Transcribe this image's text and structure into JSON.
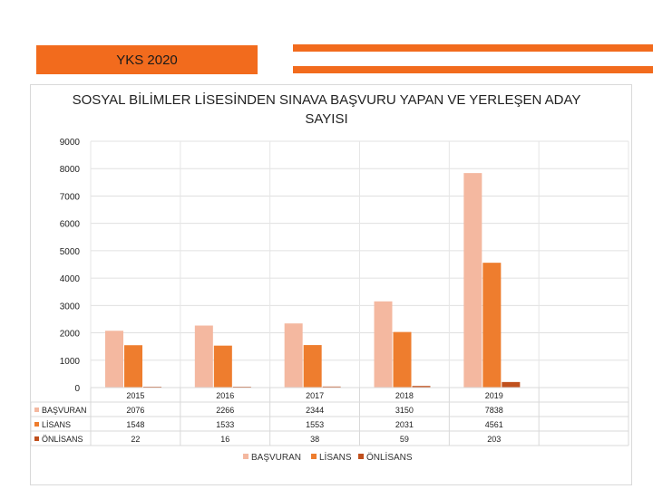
{
  "slide": {
    "banner_text": "YKS 2020",
    "accent_color": "#f26b1d"
  },
  "chart_data": {
    "type": "bar",
    "title": "SOSYAL BİLİMLER LİSESİNDEN SINAVA BAŞVURU YAPAN VE YERLEŞEN  ADAY SAYISI",
    "categories": [
      "2015",
      "2016",
      "2017",
      "2018",
      "2019"
    ],
    "series": [
      {
        "name": "BAŞVURAN",
        "values": [
          2076,
          2266,
          2344,
          3150,
          7838
        ],
        "color": "#f4b8a0"
      },
      {
        "name": "LİSANS",
        "values": [
          1548,
          1533,
          1553,
          2031,
          4561
        ],
        "color": "#ee7d2e"
      },
      {
        "name": "ÖNLİSANS",
        "values": [
          22,
          16,
          38,
          59,
          203
        ],
        "color": "#c0501d"
      }
    ],
    "ylim": [
      0,
      9000
    ],
    "yticks": [
      "0",
      "1000",
      "2000",
      "3000",
      "4000",
      "5000",
      "6000",
      "7000",
      "8000",
      "9000"
    ],
    "table_rows": [
      {
        "label": "BAŞVURAN",
        "cells": [
          "2076",
          "2266",
          "2344",
          "3150",
          "7838"
        ]
      },
      {
        "label": "LİSANS",
        "cells": [
          "1548",
          "1533",
          "1553",
          "2031",
          "4561"
        ]
      },
      {
        "label": "ÖNLİSANS",
        "cells": [
          "22",
          "16",
          "38",
          "59",
          "203"
        ]
      }
    ],
    "legend_position": "bottom",
    "grid": true
  }
}
